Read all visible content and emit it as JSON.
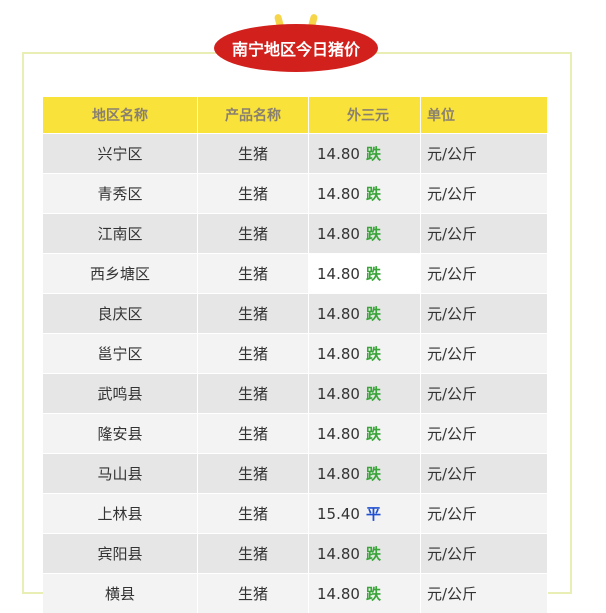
{
  "title": "南宁地区今日猪价",
  "headers": [
    "地区名称",
    "产品名称",
    "外三元",
    "单位"
  ],
  "colors": {
    "down": "#3aa63a",
    "flat": "#2050d0",
    "header": "#f9e23a",
    "badge": "#d2201c"
  },
  "rows": [
    {
      "region": "兴宁区",
      "product": "生猪",
      "price": "14.80",
      "trend": "跌",
      "unit": "元/公斤"
    },
    {
      "region": "青秀区",
      "product": "生猪",
      "price": "14.80",
      "trend": "跌",
      "unit": "元/公斤"
    },
    {
      "region": "江南区",
      "product": "生猪",
      "price": "14.80",
      "trend": "跌",
      "unit": "元/公斤"
    },
    {
      "region": "西乡塘区",
      "product": "生猪",
      "price": "14.80",
      "trend": "跌",
      "unit": "元/公斤"
    },
    {
      "region": "良庆区",
      "product": "生猪",
      "price": "14.80",
      "trend": "跌",
      "unit": "元/公斤"
    },
    {
      "region": "邕宁区",
      "product": "生猪",
      "price": "14.80",
      "trend": "跌",
      "unit": "元/公斤"
    },
    {
      "region": "武鸣县",
      "product": "生猪",
      "price": "14.80",
      "trend": "跌",
      "unit": "元/公斤"
    },
    {
      "region": "隆安县",
      "product": "生猪",
      "price": "14.80",
      "trend": "跌",
      "unit": "元/公斤"
    },
    {
      "region": "马山县",
      "product": "生猪",
      "price": "14.80",
      "trend": "跌",
      "unit": "元/公斤"
    },
    {
      "region": "上林县",
      "product": "生猪",
      "price": "15.40",
      "trend": "平",
      "unit": "元/公斤"
    },
    {
      "region": "宾阳县",
      "product": "生猪",
      "price": "14.80",
      "trend": "跌",
      "unit": "元/公斤"
    },
    {
      "region": "横县",
      "product": "生猪",
      "price": "14.80",
      "trend": "跌",
      "unit": "元/公斤"
    }
  ]
}
